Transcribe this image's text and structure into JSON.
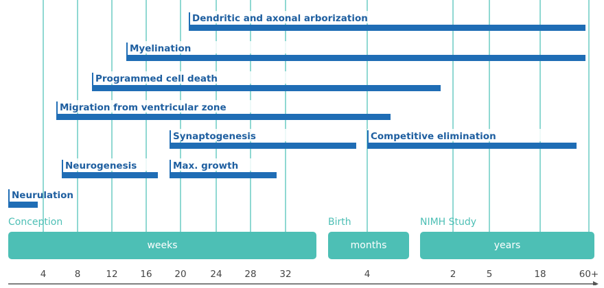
{
  "processes": [
    {
      "label": "Dendritic and axonal arborization"
    },
    {
      "label": "Myelination"
    },
    {
      "label": "Programmed cell death"
    },
    {
      "label": "Migration from ventricular zone"
    },
    {
      "label": "Synaptogenesis"
    },
    {
      "label": "Competitive elimination"
    },
    {
      "label": "Neurogenesis"
    },
    {
      "label": "Max. growth"
    },
    {
      "label": "Neurulation"
    }
  ],
  "events": [
    "Conception",
    "Birth",
    "NIMH Study"
  ],
  "scales": [
    "weeks",
    "months",
    "years"
  ],
  "ticks": [
    "4",
    "8",
    "12",
    "16",
    "20",
    "24",
    "28",
    "32",
    "4",
    "2",
    "5",
    "18",
    "60+"
  ]
}
